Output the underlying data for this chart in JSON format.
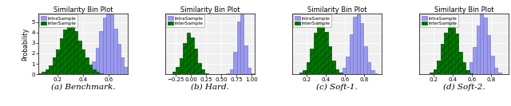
{
  "title": "Similarity Bin Plot",
  "panels": [
    {
      "label": "(a) Benchmark.",
      "xlim": [
        0.05,
        0.75
      ],
      "xticks": [
        0.2,
        0.4,
        0.6
      ],
      "ylim": [
        0,
        5.8
      ],
      "yticks": [
        0,
        1,
        2,
        3,
        4,
        5
      ],
      "intra_mean": 0.6,
      "intra_std": 0.065,
      "inter_mean": 0.3,
      "inter_std": 0.085
    },
    {
      "label": "(b) Hard.",
      "xlim": [
        -0.42,
        1.05
      ],
      "xticks": [
        -0.25,
        0.0,
        0.25,
        0.5,
        0.75,
        1.0
      ],
      "ylim": [
        0,
        5.8
      ],
      "yticks": [
        0,
        1,
        2,
        3,
        4,
        5
      ],
      "intra_mean": 0.82,
      "intra_std": 0.065,
      "inter_mean": -0.02,
      "inter_std": 0.1
    },
    {
      "label": "(c) Soft-1.",
      "xlim": [
        0.05,
        0.98
      ],
      "xticks": [
        0.2,
        0.4,
        0.6,
        0.8
      ],
      "ylim": [
        0,
        5.8
      ],
      "yticks": [
        0,
        1,
        2,
        3,
        4,
        5
      ],
      "intra_mean": 0.73,
      "intra_std": 0.065,
      "inter_mean": 0.35,
      "inter_std": 0.075
    },
    {
      "label": "(d) Soft-2.",
      "xlim": [
        0.05,
        0.98
      ],
      "xticks": [
        0.2,
        0.4,
        0.6,
        0.8
      ],
      "ylim": [
        0,
        5.8
      ],
      "yticks": [
        0,
        1,
        2,
        3,
        4,
        5
      ],
      "intra_mean": 0.71,
      "intra_std": 0.065,
      "inter_mean": 0.38,
      "inter_std": 0.075
    }
  ],
  "intra_color": "#9999ee",
  "inter_color": "#007700",
  "intra_edge_color": "#7777cc",
  "inter_edge_color": "#005500",
  "inter_hatch_color": "#000000",
  "ylabel": "Probability",
  "n_samples": 8000,
  "n_bins": 25
}
